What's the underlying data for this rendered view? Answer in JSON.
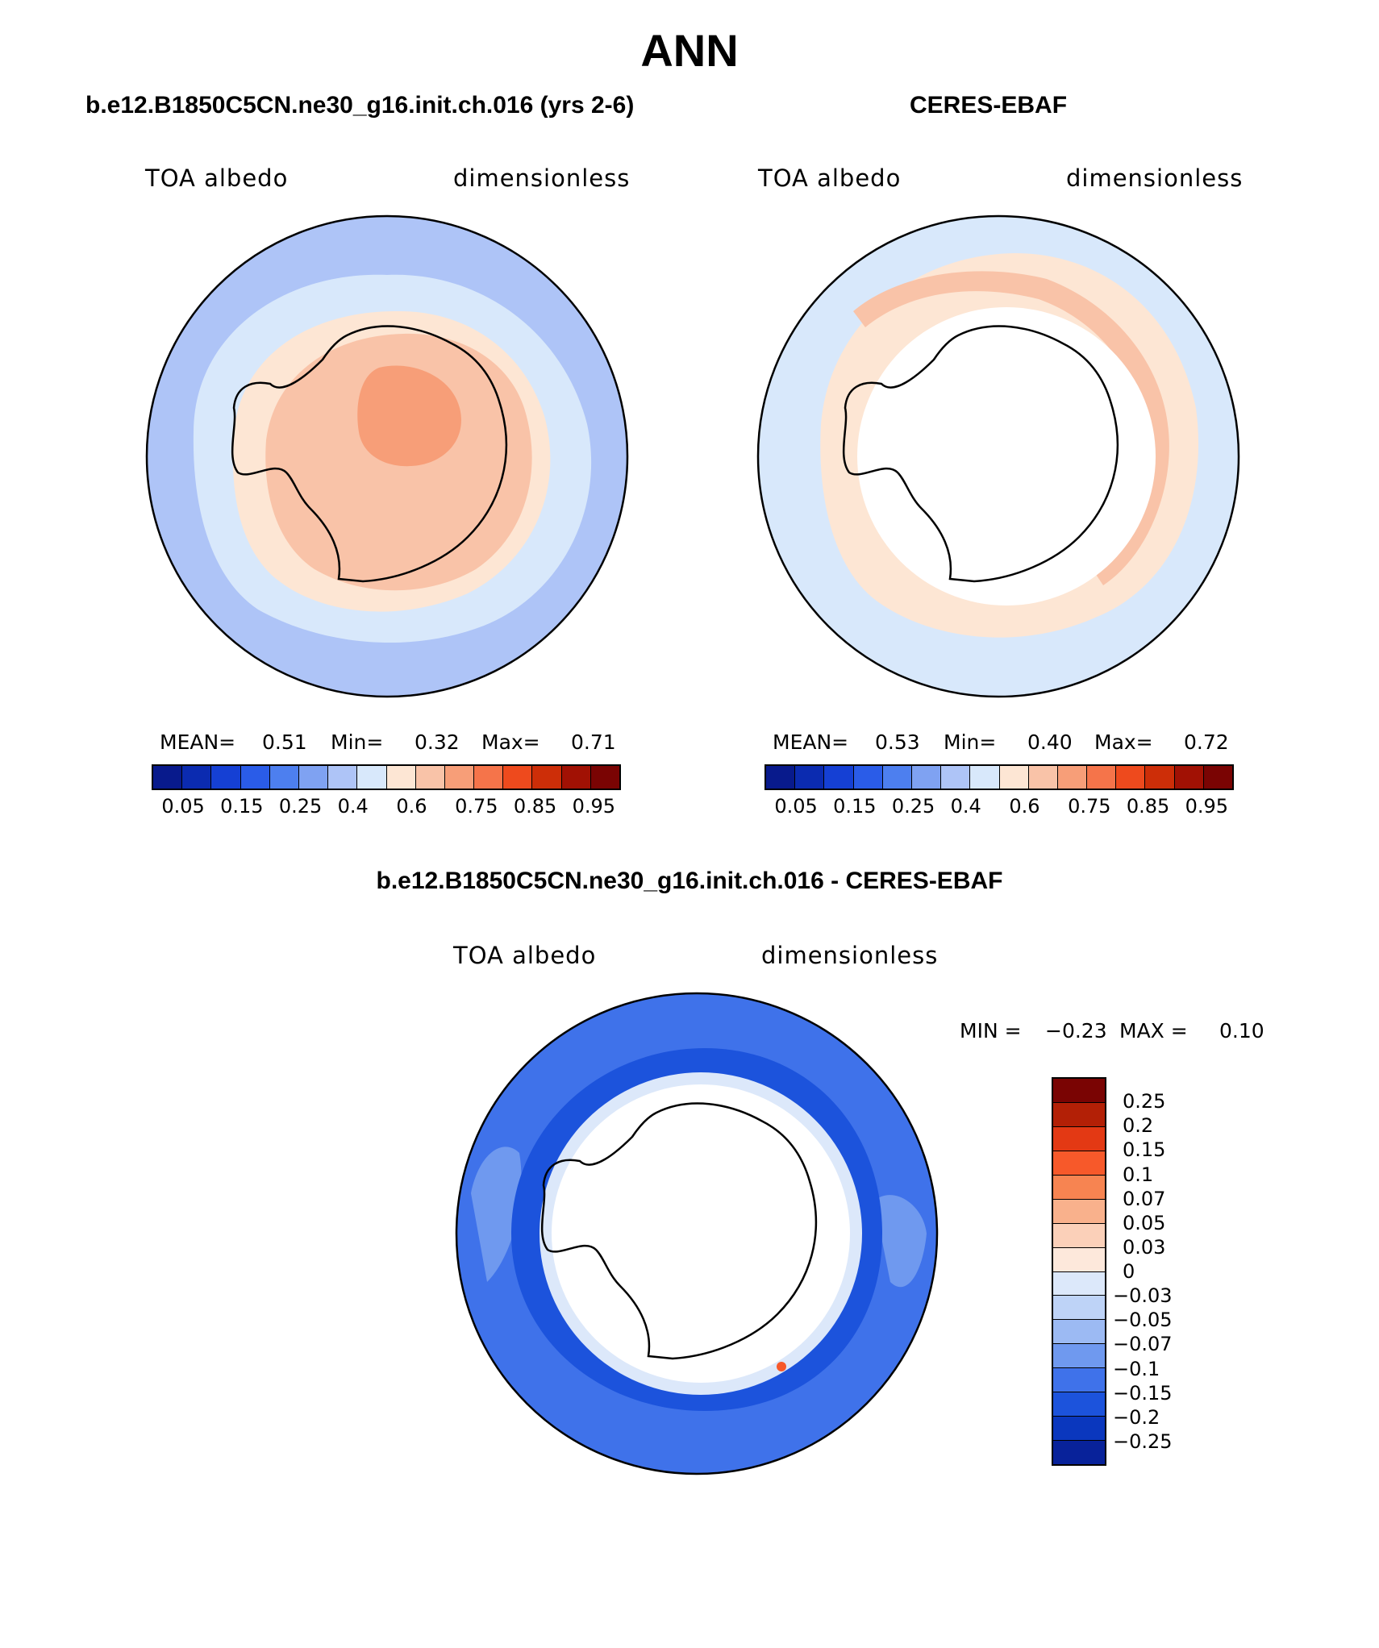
{
  "title": "ANN",
  "colors": {
    "scale15": [
      "#081a8c",
      "#0b2bb0",
      "#1540d4",
      "#2a5ce8",
      "#4d7fef",
      "#7fa2f2",
      "#aec4f7",
      "#d8e8fb",
      "#fde6d4",
      "#f9c3a8",
      "#f79e78",
      "#f5744a",
      "#ee4a1d",
      "#cd2e08",
      "#a11104",
      "#7a0403"
    ],
    "diff16": [
      "#7a0403",
      "#b32006",
      "#e33914",
      "#f7592a",
      "#f78451",
      "#f9b18c",
      "#fbd0b9",
      "#fde8db",
      "#dce8fa",
      "#bed3f7",
      "#9cbaf3",
      "#6f99ef",
      "#3f72ea",
      "#1c53dc",
      "#0a37be",
      "#08229a"
    ]
  },
  "panels": [
    {
      "title": "b.e12.B1850C5CN.ne30_g16.init.ch.016 (yrs 2-6)",
      "variable": "TOA albedo",
      "units": "dimensionless",
      "mean_label": "MEAN=",
      "mean": "0.51",
      "min_label": "Min=",
      "min": "0.32",
      "max_label": "Max=",
      "max": "0.71"
    },
    {
      "title": "CERES-EBAF",
      "variable": "TOA albedo",
      "units": "dimensionless",
      "mean_label": "MEAN=",
      "mean": "0.53",
      "min_label": "Min=",
      "min": "0.40",
      "max_label": "Max=",
      "max": "0.72"
    }
  ],
  "colorbar_ticks": [
    "0.05",
    "0.15",
    "0.25",
    "0.4",
    "0.6",
    "0.75",
    "0.85",
    "0.95"
  ],
  "diff": {
    "title": "b.e12.B1850C5CN.ne30_g16.init.ch.016 - CERES-EBAF",
    "variable": "TOA albedo",
    "units": "dimensionless",
    "min_label": "MIN =",
    "min": "−0.23",
    "max_label": "MAX =",
    "max": "0.10",
    "ticks": [
      "0.25",
      "0.2",
      "0.15",
      "0.1",
      "0.07",
      "0.05",
      "0.03",
      "0",
      "−0.03",
      "−0.05",
      "−0.07",
      "−0.1",
      "−0.15",
      "−0.2",
      "−0.25"
    ]
  }
}
